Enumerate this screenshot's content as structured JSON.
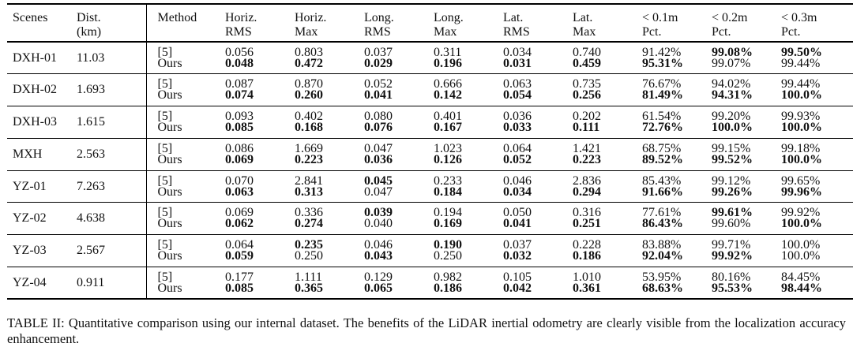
{
  "table": {
    "headers": [
      [
        "Scenes",
        ""
      ],
      [
        "Dist.",
        "(km)"
      ],
      [
        "Method",
        ""
      ],
      [
        "Horiz.",
        "RMS"
      ],
      [
        "Horiz.",
        "Max"
      ],
      [
        "Long.",
        "RMS"
      ],
      [
        "Long.",
        "Max"
      ],
      [
        "Lat.",
        "RMS"
      ],
      [
        "Lat.",
        "Max"
      ],
      [
        "< 0.1m",
        "Pct."
      ],
      [
        "< 0.2m",
        "Pct."
      ],
      [
        "< 0.3m",
        "Pct."
      ]
    ],
    "methods": [
      "[5]",
      "Ours"
    ],
    "rows": [
      {
        "scene": "DXH-01",
        "dist": "11.03",
        "cells": [
          [
            "0.056",
            "0.048"
          ],
          [
            "0.803",
            "0.472"
          ],
          [
            "0.037",
            "0.029"
          ],
          [
            "0.311",
            "0.196"
          ],
          [
            "0.034",
            "0.031"
          ],
          [
            "0.740",
            "0.459"
          ],
          [
            "91.42%",
            "95.31%"
          ],
          [
            "99.08%",
            "99.07%"
          ],
          [
            "99.50%",
            "99.44%"
          ]
        ],
        "bold": [
          [
            false,
            true
          ],
          [
            false,
            true
          ],
          [
            false,
            true
          ],
          [
            false,
            true
          ],
          [
            false,
            true
          ],
          [
            false,
            true
          ],
          [
            false,
            true
          ],
          [
            true,
            false
          ],
          [
            true,
            false
          ]
        ]
      },
      {
        "scene": "DXH-02",
        "dist": "1.693",
        "cells": [
          [
            "0.087",
            "0.074"
          ],
          [
            "0.870",
            "0.260"
          ],
          [
            "0.052",
            "0.041"
          ],
          [
            "0.666",
            "0.142"
          ],
          [
            "0.063",
            "0.054"
          ],
          [
            "0.735",
            "0.256"
          ],
          [
            "76.67%",
            "81.49%"
          ],
          [
            "94.02%",
            "94.31%"
          ],
          [
            "99.44%",
            "100.0%"
          ]
        ],
        "bold": [
          [
            false,
            true
          ],
          [
            false,
            true
          ],
          [
            false,
            true
          ],
          [
            false,
            true
          ],
          [
            false,
            true
          ],
          [
            false,
            true
          ],
          [
            false,
            true
          ],
          [
            false,
            true
          ],
          [
            false,
            true
          ]
        ]
      },
      {
        "scene": "DXH-03",
        "dist": "1.615",
        "cells": [
          [
            "0.093",
            "0.085"
          ],
          [
            "0.402",
            "0.168"
          ],
          [
            "0.080",
            "0.076"
          ],
          [
            "0.401",
            "0.167"
          ],
          [
            "0.036",
            "0.033"
          ],
          [
            "0.202",
            "0.111"
          ],
          [
            "61.54%",
            "72.76%"
          ],
          [
            "99.20%",
            "100.0%"
          ],
          [
            "99.93%",
            "100.0%"
          ]
        ],
        "bold": [
          [
            false,
            true
          ],
          [
            false,
            true
          ],
          [
            false,
            true
          ],
          [
            false,
            true
          ],
          [
            false,
            true
          ],
          [
            false,
            true
          ],
          [
            false,
            true
          ],
          [
            false,
            true
          ],
          [
            false,
            true
          ]
        ]
      },
      {
        "scene": "MXH",
        "dist": "2.563",
        "cells": [
          [
            "0.086",
            "0.069"
          ],
          [
            "1.669",
            "0.223"
          ],
          [
            "0.047",
            "0.036"
          ],
          [
            "1.023",
            "0.126"
          ],
          [
            "0.064",
            "0.052"
          ],
          [
            "1.421",
            "0.223"
          ],
          [
            "68.75%",
            "89.52%"
          ],
          [
            "99.15%",
            "99.52%"
          ],
          [
            "99.18%",
            "100.0%"
          ]
        ],
        "bold": [
          [
            false,
            true
          ],
          [
            false,
            true
          ],
          [
            false,
            true
          ],
          [
            false,
            true
          ],
          [
            false,
            true
          ],
          [
            false,
            true
          ],
          [
            false,
            true
          ],
          [
            false,
            true
          ],
          [
            false,
            true
          ]
        ]
      },
      {
        "scene": "YZ-01",
        "dist": "7.263",
        "cells": [
          [
            "0.070",
            "0.063"
          ],
          [
            "2.841",
            "0.313"
          ],
          [
            "0.045",
            "0.047"
          ],
          [
            "0.233",
            "0.184"
          ],
          [
            "0.046",
            "0.034"
          ],
          [
            "2.836",
            "0.294"
          ],
          [
            "85.43%",
            "91.66%"
          ],
          [
            "99.12%",
            "99.26%"
          ],
          [
            "99.65%",
            "99.96%"
          ]
        ],
        "bold": [
          [
            false,
            true
          ],
          [
            false,
            true
          ],
          [
            true,
            false
          ],
          [
            false,
            true
          ],
          [
            false,
            true
          ],
          [
            false,
            true
          ],
          [
            false,
            true
          ],
          [
            false,
            true
          ],
          [
            false,
            true
          ]
        ]
      },
      {
        "scene": "YZ-02",
        "dist": "4.638",
        "cells": [
          [
            "0.069",
            "0.062"
          ],
          [
            "0.336",
            "0.274"
          ],
          [
            "0.039",
            "0.040"
          ],
          [
            "0.194",
            "0.169"
          ],
          [
            "0.050",
            "0.041"
          ],
          [
            "0.316",
            "0.251"
          ],
          [
            "77.61%",
            "86.43%"
          ],
          [
            "99.61%",
            "99.60%"
          ],
          [
            "99.92%",
            "100.0%"
          ]
        ],
        "bold": [
          [
            false,
            true
          ],
          [
            false,
            true
          ],
          [
            true,
            false
          ],
          [
            false,
            true
          ],
          [
            false,
            true
          ],
          [
            false,
            true
          ],
          [
            false,
            true
          ],
          [
            true,
            false
          ],
          [
            false,
            true
          ]
        ]
      },
      {
        "scene": "YZ-03",
        "dist": "2.567",
        "cells": [
          [
            "0.064",
            "0.059"
          ],
          [
            "0.235",
            "0.250"
          ],
          [
            "0.046",
            "0.043"
          ],
          [
            "0.190",
            "0.250"
          ],
          [
            "0.037",
            "0.032"
          ],
          [
            "0.228",
            "0.186"
          ],
          [
            "83.88%",
            "92.04%"
          ],
          [
            "99.71%",
            "99.92%"
          ],
          [
            "100.0%",
            "100.0%"
          ]
        ],
        "bold": [
          [
            false,
            true
          ],
          [
            true,
            false
          ],
          [
            false,
            true
          ],
          [
            true,
            false
          ],
          [
            false,
            true
          ],
          [
            false,
            true
          ],
          [
            false,
            true
          ],
          [
            false,
            true
          ],
          [
            false,
            false
          ]
        ]
      },
      {
        "scene": "YZ-04",
        "dist": "0.911",
        "cells": [
          [
            "0.177",
            "0.085"
          ],
          [
            "1.111",
            "0.365"
          ],
          [
            "0.129",
            "0.065"
          ],
          [
            "0.982",
            "0.186"
          ],
          [
            "0.105",
            "0.042"
          ],
          [
            "1.010",
            "0.361"
          ],
          [
            "53.95%",
            "68.63%"
          ],
          [
            "80.16%",
            "95.53%"
          ],
          [
            "84.45%",
            "98.44%"
          ]
        ],
        "bold": [
          [
            false,
            true
          ],
          [
            false,
            true
          ],
          [
            false,
            true
          ],
          [
            false,
            true
          ],
          [
            false,
            true
          ],
          [
            false,
            true
          ],
          [
            false,
            true
          ],
          [
            false,
            true
          ],
          [
            false,
            true
          ]
        ]
      }
    ]
  },
  "caption": "TABLE II: Quantitative comparison using our internal dataset. The benefits of the LiDAR inertial odometry are clearly visible from the localization accuracy enhancement."
}
